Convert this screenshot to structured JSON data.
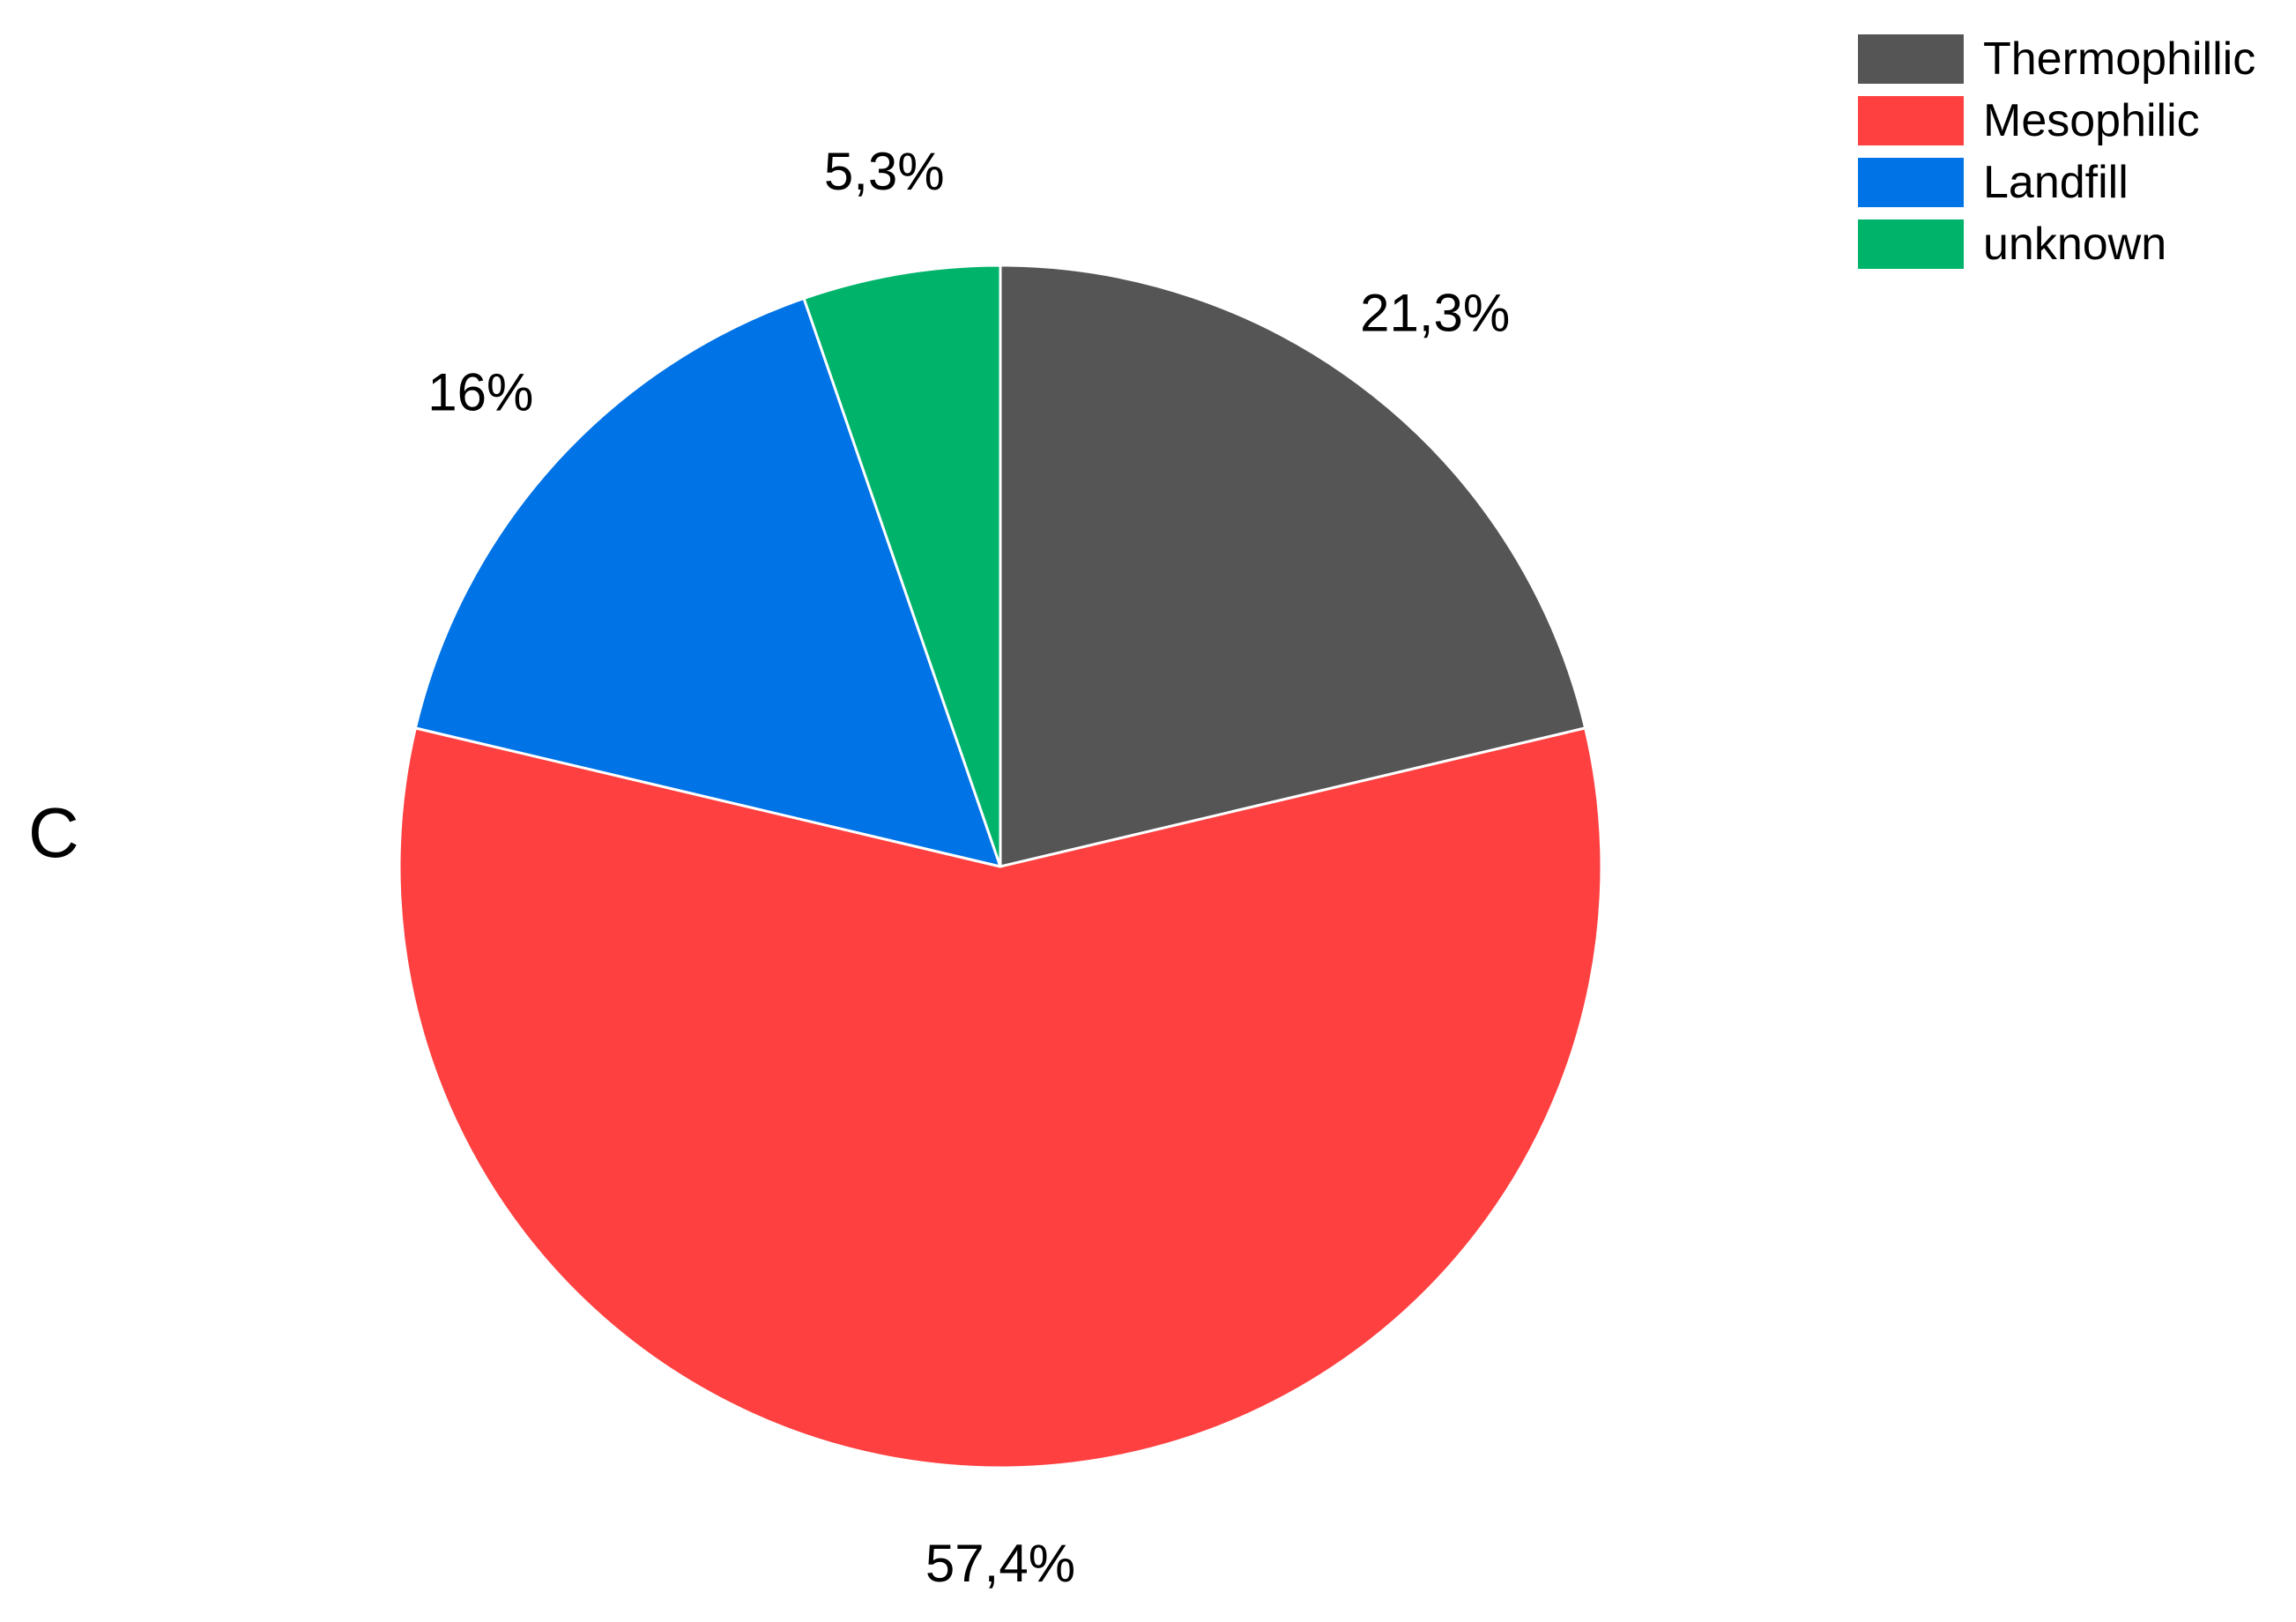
{
  "panel_label": "C",
  "chart_data": {
    "type": "pie",
    "slices": [
      {
        "name": "Thermophillic",
        "value": 21.3,
        "label": "21,3%",
        "color": "#555555"
      },
      {
        "name": "Mesophilic",
        "value": 57.4,
        "label": "57,4%",
        "color": "#ff4040"
      },
      {
        "name": "Landfill",
        "value": 16.0,
        "label": "16%",
        "color": "#0073e6"
      },
      {
        "name": "unknown",
        "value": 5.3,
        "label": "5,3%",
        "color": "#00b36b"
      }
    ],
    "start_angle": "12 o'clock",
    "direction": "clockwise",
    "legend_position": "top-right"
  }
}
